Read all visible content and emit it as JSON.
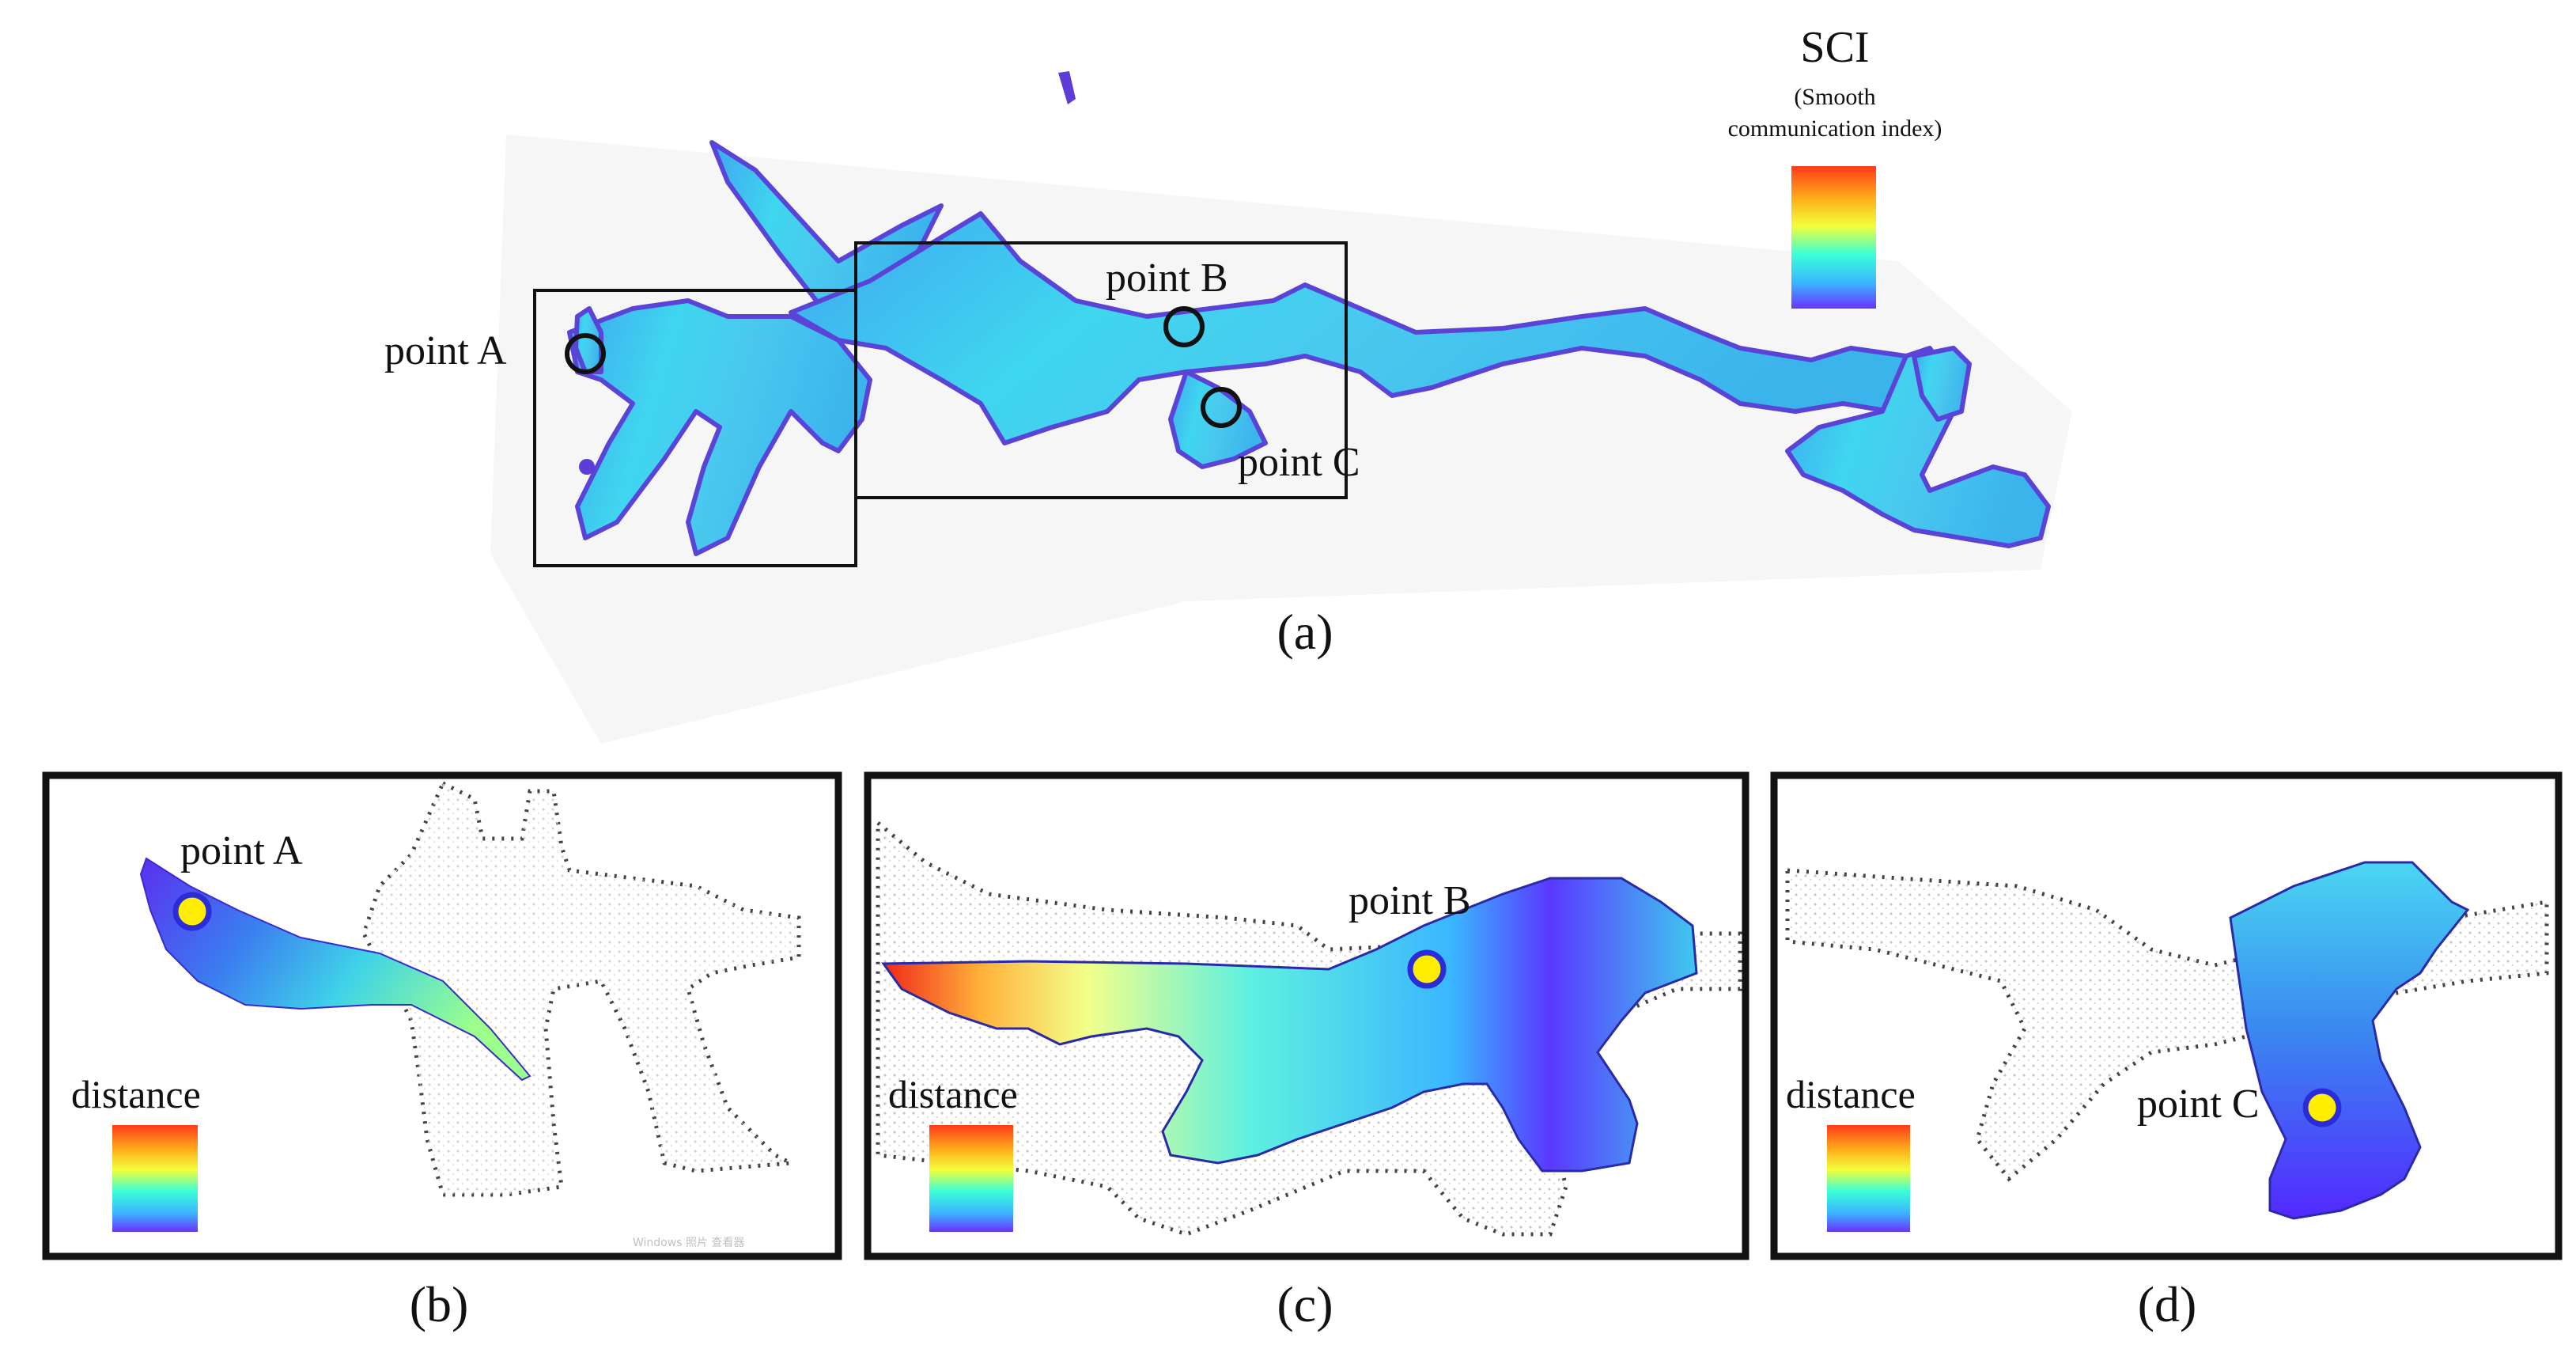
{
  "panel_a": {
    "point_labels": {
      "a": "point A",
      "b": "point B",
      "c": "point C"
    },
    "caption": "(a)",
    "legend": {
      "title": "SCI",
      "subtitle_line1": "(Smooth",
      "subtitle_line2": "communication index)",
      "colormap": [
        "#ff3a1a",
        "#ffaa1a",
        "#f6ff3a",
        "#3affd8",
        "#3ab6ff",
        "#6a32ff"
      ]
    }
  },
  "panel_b": {
    "point_label": "point A",
    "legend_label": "distance",
    "caption": "(b)",
    "watermark": "Windows 照片 查看器"
  },
  "panel_c": {
    "point_label": "point B",
    "legend_label": "distance",
    "caption": "(c)"
  },
  "panel_d": {
    "point_label": "point C",
    "legend_label": "distance",
    "caption": "(d)"
  },
  "colors": {
    "surface_cyan": "#3dc8ef",
    "surface_blue": "#2f9fe8",
    "surface_purple": "#4a2cff",
    "marker_yellow": "#ffee00",
    "marker_ring": "#2b2bd8",
    "point_cloud": "#9a9a9a"
  }
}
